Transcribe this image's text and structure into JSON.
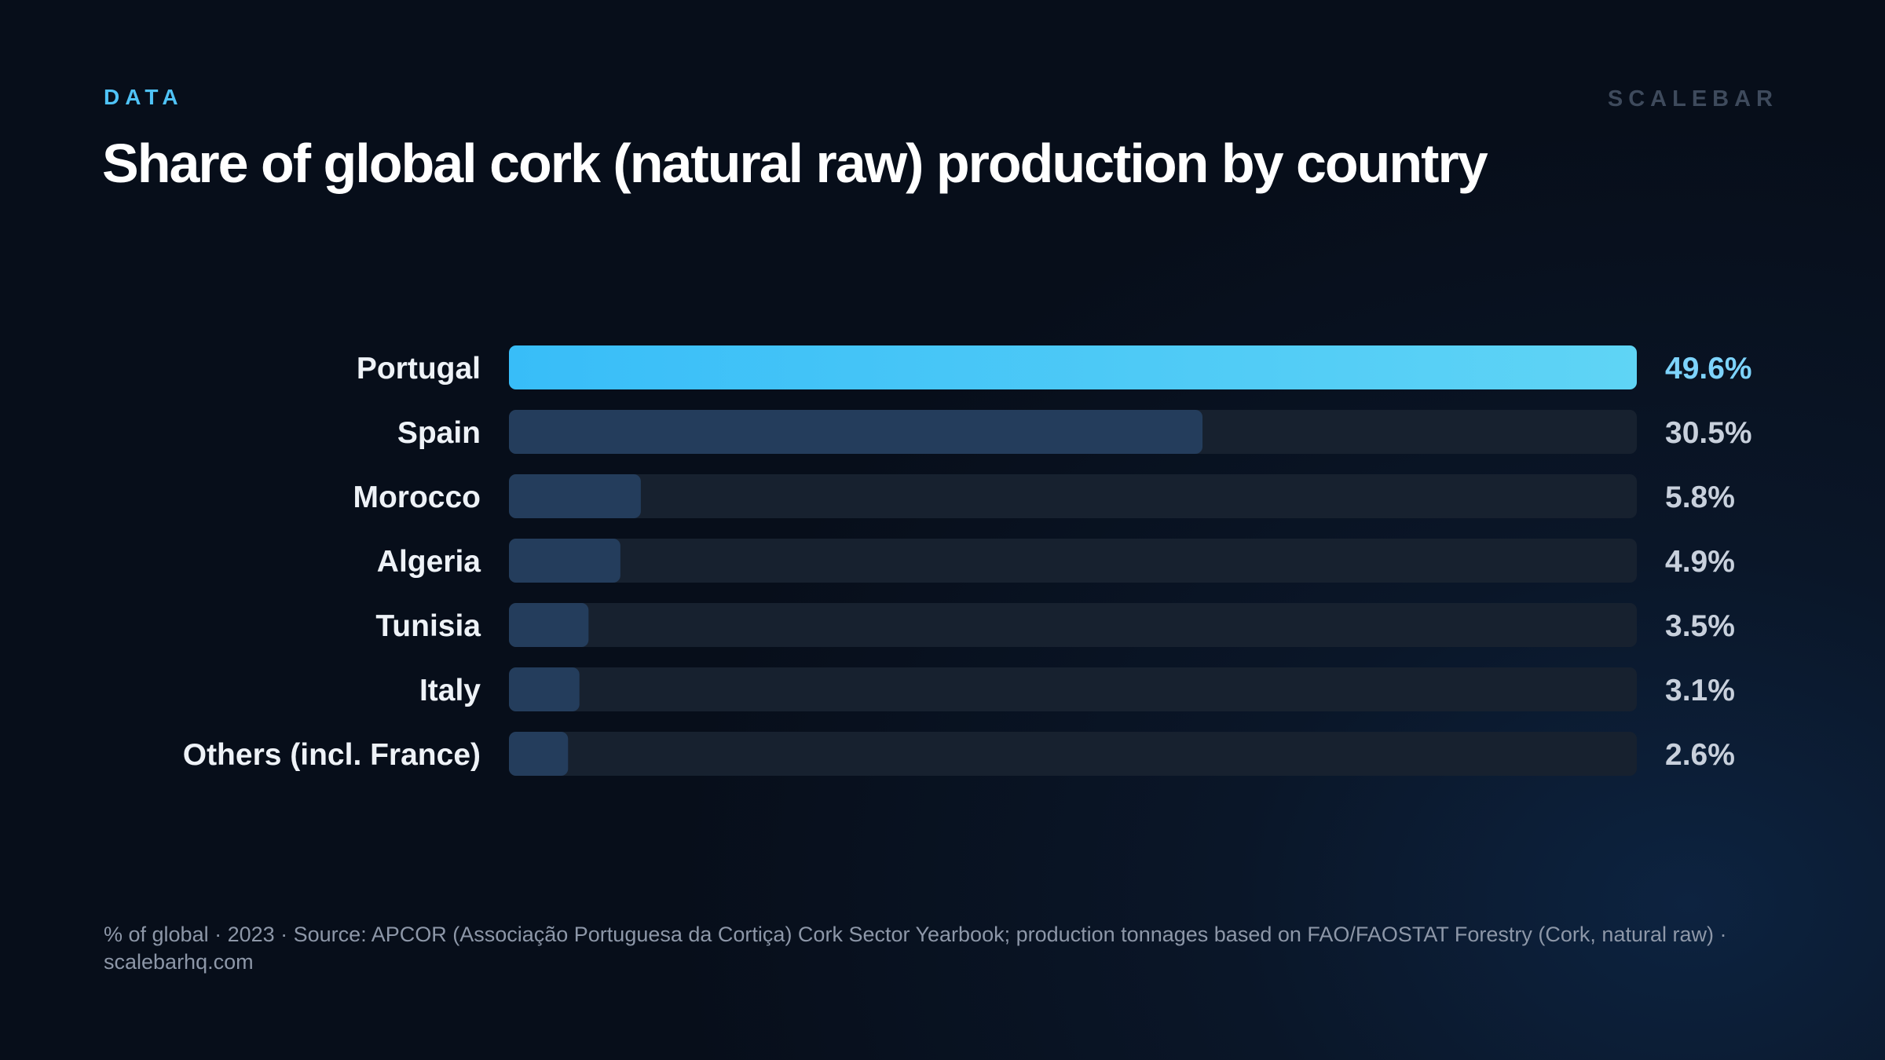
{
  "header": {
    "kicker": "DATA",
    "brand": "SCALEBAR",
    "title": "Share of global cork (natural raw) production by country"
  },
  "footer": {
    "note": "% of global · 2023 · Source: APCOR (Associação Portuguesa da Cortiça) Cork Sector Yearbook; production tonnages based on FAO/FAOSTAT Forestry (Cork, natural raw) · scalebarhq.com"
  },
  "colors": {
    "highlight_start": "#38bdf8",
    "highlight_end": "#5fd4f5",
    "bar": "#243d5c",
    "track": "#17212f",
    "highlight_label": "#7dd3fc",
    "value_label": "#c8d0dc",
    "category_label": "#eef2f7"
  },
  "chart_data": {
    "type": "bar",
    "orientation": "horizontal",
    "title": "Share of global cork (natural raw) production by country",
    "xlim": [
      0,
      49.6
    ],
    "unit": "%",
    "categories": [
      "Portugal",
      "Spain",
      "Morocco",
      "Algeria",
      "Tunisia",
      "Italy",
      "Others (incl. France)"
    ],
    "values": [
      49.6,
      30.5,
      5.8,
      4.9,
      3.5,
      3.1,
      2.6
    ],
    "value_labels": [
      "49.6%",
      "30.5%",
      "5.8%",
      "4.9%",
      "3.5%",
      "3.1%",
      "2.6%"
    ],
    "highlight": "Portugal",
    "grid": false,
    "legend": "none"
  }
}
